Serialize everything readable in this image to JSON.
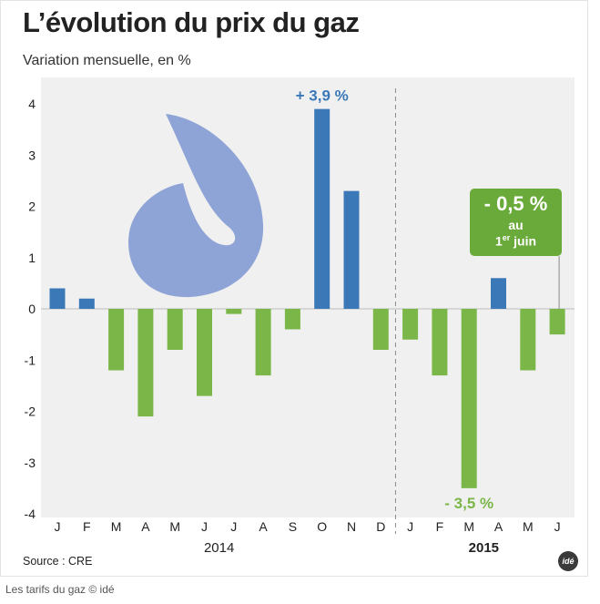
{
  "title": "L’évolution du prix du gaz",
  "subtitle": "Variation mensuelle, en %",
  "source": "Source : CRE",
  "logo_text": "idé",
  "caption": "Les tarifs du gaz © idé",
  "callout": {
    "value": "- 0,5 %",
    "line1": "au",
    "line2_day": "1",
    "line2_sup": "er",
    "line2_month": "juin"
  },
  "colors": {
    "positive": "#3a78b8",
    "negative": "#7ab648",
    "flame": "#8fa4d6",
    "plot_background": "#f0f0f0",
    "callout": "#6aaa3b"
  },
  "icons": [
    "gas-flame-icon"
  ],
  "chart_data": {
    "type": "bar",
    "title": "L’évolution du prix du gaz",
    "subtitle": "Variation mensuelle, en %",
    "ylim": [
      -4,
      4
    ],
    "yticks": [
      "4",
      "3",
      "2",
      "1",
      "0",
      "-1",
      "-2",
      "-3",
      "-4"
    ],
    "ytick_values": [
      4,
      3,
      2,
      1,
      0,
      -1,
      -2,
      -3,
      -4
    ],
    "categories": [
      "J",
      "F",
      "M",
      "A",
      "M",
      "J",
      "J",
      "A",
      "S",
      "O",
      "N",
      "D",
      "J",
      "F",
      "M",
      "A",
      "M",
      "J"
    ],
    "years": [
      {
        "label": "2014",
        "start": 0,
        "end": 11,
        "bold": false
      },
      {
        "label": "2015",
        "start": 12,
        "end": 17,
        "bold": true
      }
    ],
    "values": [
      0.4,
      0.2,
      -1.2,
      -2.1,
      -0.8,
      -1.7,
      -0.1,
      -1.3,
      -0.4,
      3.9,
      2.3,
      -0.8,
      -0.6,
      -1.3,
      -3.5,
      0.6,
      -1.2,
      -0.5
    ],
    "annotations": [
      {
        "index": 9,
        "text": "+ 3,9 %"
      },
      {
        "index": 14,
        "text": "- 3,5 %"
      }
    ],
    "grid": false,
    "legend": "none"
  }
}
